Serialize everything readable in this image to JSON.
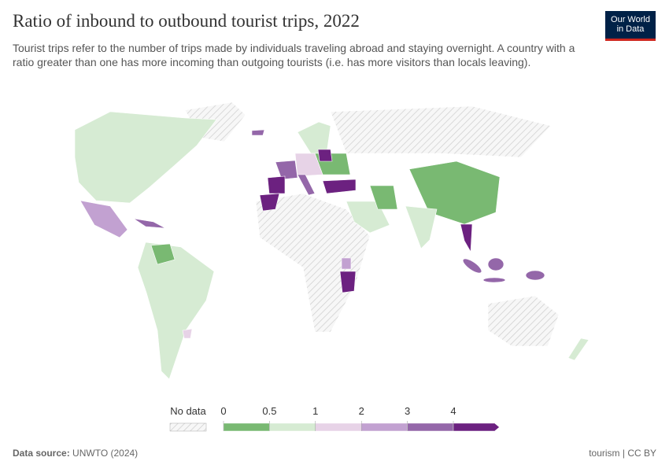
{
  "header": {
    "title": "Ratio of inbound to outbound tourist trips, 2022",
    "subtitle": "Tourist trips refer to the number of trips made by individuals traveling abroad and staying overnight. A country with a ratio greater than one has more incoming than outgoing tourists (i.e. has more visitors than locals leaving).",
    "logo": [
      "Our World",
      "in Data"
    ]
  },
  "legend": {
    "no_data": "No data",
    "ticks": [
      0,
      0.5,
      1,
      2,
      3,
      4
    ],
    "colors": [
      "#79b972",
      "#d6ebd3",
      "#e7d3e7",
      "#c2a1d1",
      "#9467a9",
      "#6c2180"
    ]
  },
  "footer": {
    "source_label": "Data source:",
    "source": "UNWTO (2024)",
    "right": "tourism | CC BY"
  }
}
